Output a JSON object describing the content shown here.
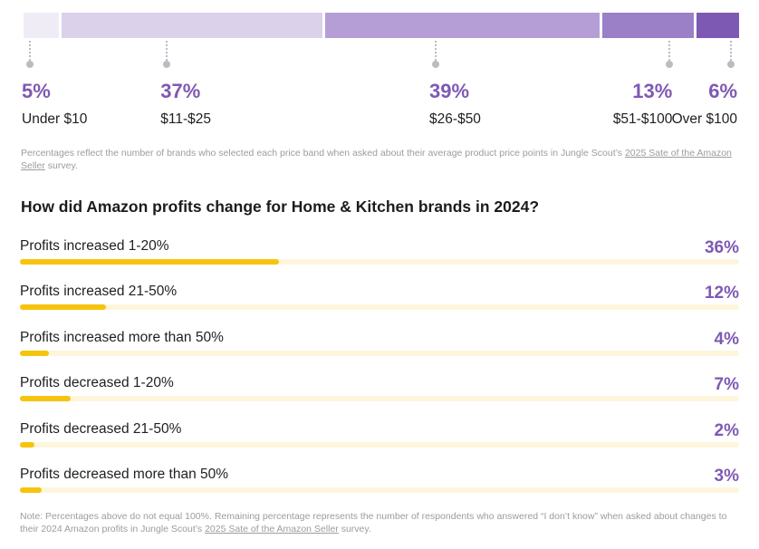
{
  "chart_data": [
    {
      "type": "bar",
      "orientation": "stacked-horizontal",
      "title": "",
      "categories": [
        "Under $10",
        "$11-$25",
        "$26-$50",
        "$51-$100",
        "Over $100"
      ],
      "values": [
        5,
        37,
        39,
        13,
        6
      ],
      "value_labels": [
        "5%",
        "37%",
        "39%",
        "13%",
        "6%"
      ],
      "colors": [
        "#efecf5",
        "#dbd1eb",
        "#b59ed6",
        "#9b7fc7",
        "#7e59b3"
      ],
      "unit": "%"
    },
    {
      "type": "bar",
      "orientation": "horizontal",
      "title": "How did Amazon profits change for Home & Kitchen brands in 2024?",
      "categories": [
        "Profits increased 1-20%",
        "Profits increased 21-50%",
        "Profits increased more than 50%",
        "Profits decreased 1-20%",
        "Profits decreased 21-50%",
        "Profits decreased more than 50%"
      ],
      "values": [
        36,
        12,
        4,
        7,
        2,
        3
      ],
      "value_labels": [
        "36%",
        "12%",
        "4%",
        "7%",
        "2%",
        "3%"
      ],
      "xlim": [
        0,
        100
      ],
      "bar_color": "#f6c40f",
      "track_color": "#fdf6dc",
      "value_color": "#7e59b3"
    }
  ],
  "price_footnote": {
    "text": "Percentages reflect the number of brands who selected each price band when asked about their average product price points in Jungle Scout’s ",
    "link": "2025 Sate of the Amazon Seller",
    "tail": " survey."
  },
  "profit_footnote": {
    "text": "Note: Percentages above do not equal 100%. Remaining percentage represents the number of respondents who answered “I don’t know” when asked about changes to their 2024 Amazon profits in Jungle Scout’s ",
    "link": "2025 Sate of the Amazon Seller",
    "tail": " survey."
  }
}
